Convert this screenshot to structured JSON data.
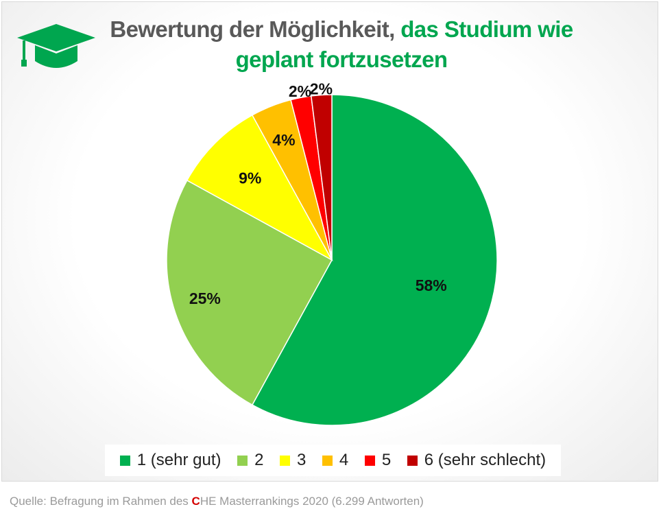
{
  "header": {
    "title_part1": "Bewertung der Möglichkeit,",
    "title_part2": "das Studium wie geplant fortzusetzen",
    "icon": "graduation-cap-icon"
  },
  "chart_data": {
    "type": "pie",
    "title": "Bewertung der Möglichkeit, das Studium wie geplant fortzusetzen",
    "categories": [
      "1 (sehr gut)",
      "2",
      "3",
      "4",
      "5",
      "6 (sehr schlecht)"
    ],
    "values": [
      58,
      25,
      9,
      4,
      2,
      2
    ],
    "labels": [
      "58%",
      "25%",
      "9%",
      "4%",
      "2%",
      "2%"
    ],
    "colors": [
      "#00b050",
      "#92d050",
      "#ffff00",
      "#ffc000",
      "#ff0000",
      "#c00000"
    ],
    "start": "12 o'clock",
    "direction": "clockwise",
    "legend_position": "bottom"
  },
  "footer": {
    "source_prefix": "Quelle: Befragung im Rahmen des ",
    "source_brand_c": "C",
    "source_suffix": "HE Masterrankings 2020 (6.299 Antworten)"
  },
  "colors": {
    "accent_green": "#00a64f",
    "title_gray": "#595959"
  }
}
